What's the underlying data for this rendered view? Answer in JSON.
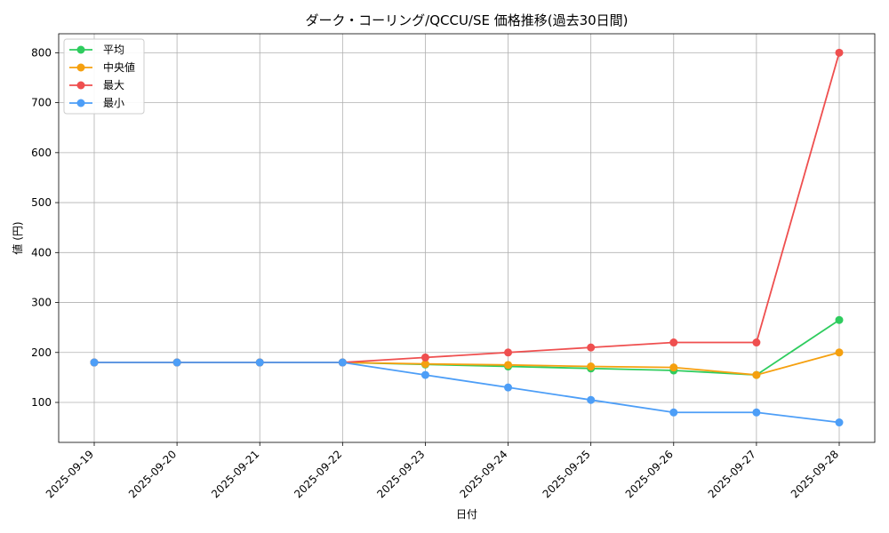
{
  "chart_data": {
    "type": "line",
    "title": "ダーク・コーリング/QCCU/SE 価格推移(過去30日間)",
    "xlabel": "日付",
    "ylabel": "値 (円)",
    "categories": [
      "2025-09-19",
      "2025-09-20",
      "2025-09-21",
      "2025-09-22",
      "2025-09-23",
      "2025-09-24",
      "2025-09-25",
      "2025-09-26",
      "2025-09-27",
      "2025-09-28"
    ],
    "yticks": [
      100,
      200,
      300,
      400,
      500,
      600,
      700,
      800
    ],
    "ylim": [
      20,
      838
    ],
    "grid": true,
    "legend_position": "top-left",
    "series": [
      {
        "name": "平均",
        "color": "#2ecc5e",
        "values": [
          180,
          180,
          180,
          180,
          176,
          172,
          168,
          164,
          155,
          265
        ]
      },
      {
        "name": "中央値",
        "color": "#f5a00f",
        "values": [
          180,
          180,
          180,
          180,
          177,
          175,
          172,
          170,
          155,
          200
        ]
      },
      {
        "name": "最大",
        "color": "#ef4f4f",
        "values": [
          180,
          180,
          180,
          180,
          190,
          200,
          210,
          220,
          220,
          800
        ]
      },
      {
        "name": "最小",
        "color": "#4d9ef7",
        "values": [
          180,
          180,
          180,
          180,
          155,
          130,
          105,
          80,
          80,
          60
        ]
      }
    ]
  }
}
